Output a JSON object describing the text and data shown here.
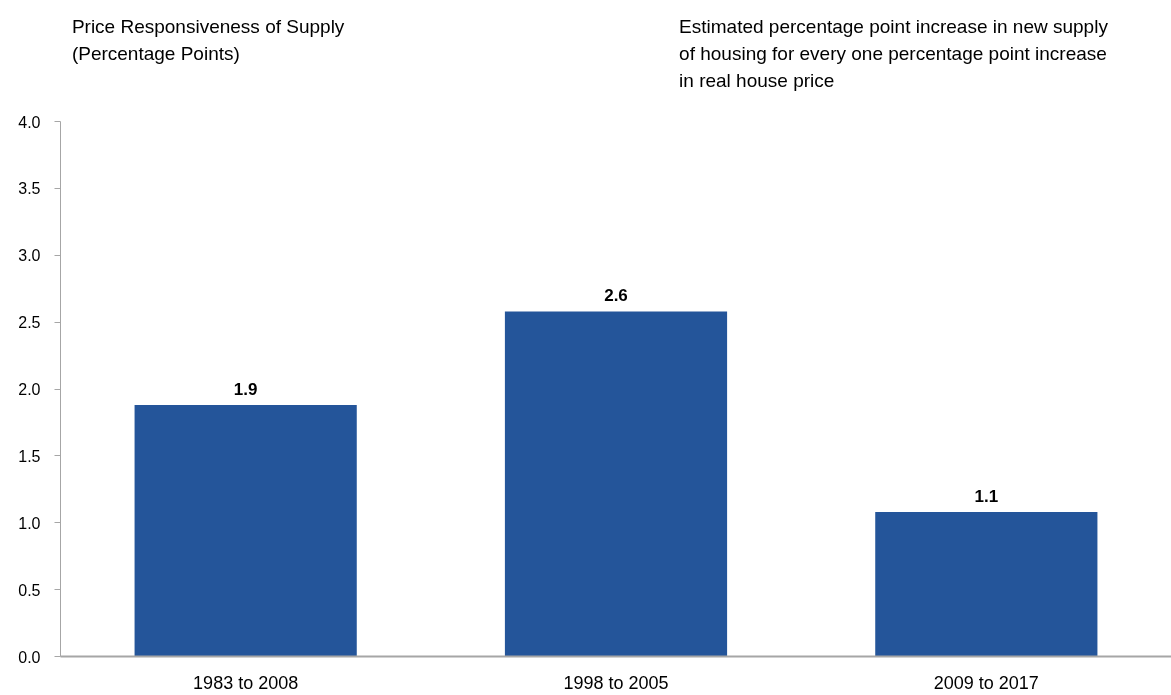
{
  "chart_data": {
    "type": "bar",
    "ylabel": "Price Responsiveness of Supply\n(Percentage Points)",
    "subtitle": "Estimated percentage point increase in new supply\nof housing for every one percentage point increase\nin real house price",
    "categories": [
      "1983 to 2008",
      "1998 to 2005",
      "2009 to 2017"
    ],
    "values": [
      1.88,
      2.58,
      1.08
    ],
    "value_labels": [
      "1.9",
      "2.6",
      "1.1"
    ],
    "color": "#24559a",
    "ylim": [
      0,
      4
    ],
    "yticks": [
      {
        "value": 0,
        "label": "0.0"
      },
      {
        "value": 0.5,
        "label": "0.5"
      },
      {
        "value": 1,
        "label": "1.0"
      },
      {
        "value": 1.5,
        "label": "1.5"
      },
      {
        "value": 2,
        "label": "2.0"
      },
      {
        "value": 2.5,
        "label": "2.5"
      },
      {
        "value": 3,
        "label": "3.0"
      },
      {
        "value": 3.5,
        "label": "3.5"
      },
      {
        "value": 4,
        "label": "4.0"
      }
    ]
  }
}
